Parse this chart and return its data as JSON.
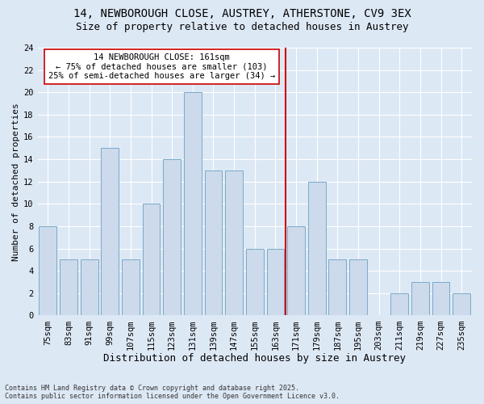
{
  "title_line1": "14, NEWBOROUGH CLOSE, AUSTREY, ATHERSTONE, CV9 3EX",
  "title_line2": "Size of property relative to detached houses in Austrey",
  "xlabel": "Distribution of detached houses by size in Austrey",
  "ylabel": "Number of detached properties",
  "categories": [
    "75sqm",
    "83sqm",
    "91sqm",
    "99sqm",
    "107sqm",
    "115sqm",
    "123sqm",
    "131sqm",
    "139sqm",
    "147sqm",
    "155sqm",
    "163sqm",
    "171sqm",
    "179sqm",
    "187sqm",
    "195sqm",
    "203sqm",
    "211sqm",
    "219sqm",
    "227sqm",
    "235sqm"
  ],
  "values": [
    8,
    5,
    5,
    15,
    5,
    10,
    14,
    20,
    13,
    13,
    6,
    6,
    8,
    12,
    5,
    5,
    0,
    2,
    3,
    3,
    2
  ],
  "bar_color": "#ccdaeb",
  "bar_edge_color": "#7aaac8",
  "vline_color": "#cc0000",
  "annotation_text": "14 NEWBOROUGH CLOSE: 161sqm\n← 75% of detached houses are smaller (103)\n25% of semi-detached houses are larger (34) →",
  "annotation_box_color": "#ffffff",
  "annotation_box_edge_color": "#cc0000",
  "background_color": "#dde8f5",
  "grid_color": "#ffffff",
  "ylim": [
    0,
    24
  ],
  "yticks": [
    0,
    2,
    4,
    6,
    8,
    10,
    12,
    14,
    16,
    18,
    20,
    22,
    24
  ],
  "footnote": "Contains HM Land Registry data © Crown copyright and database right 2025.\nContains public sector information licensed under the Open Government Licence v3.0.",
  "title_fontsize": 10,
  "subtitle_fontsize": 9,
  "tick_fontsize": 7.5,
  "xlabel_fontsize": 9,
  "ylabel_fontsize": 8
}
